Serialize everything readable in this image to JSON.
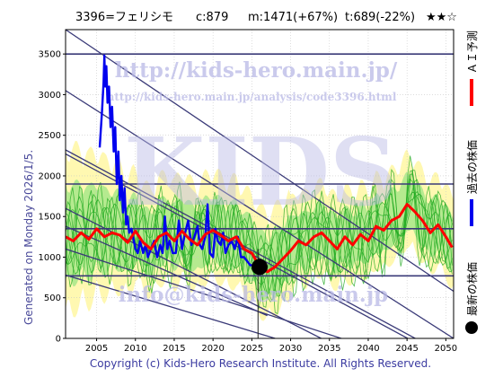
{
  "header": {
    "code_name": "3396=フェリシモ",
    "current": "c:879",
    "mid_target": "m:1471(+67%)",
    "low_target": "t:689(-22%)",
    "rating": "★★☆"
  },
  "side_text": "Generated on Monday 2026/1/5.",
  "footer": "Copyright (c) Kids-Hero Research Institute. All Rights Reserved.",
  "watermarks": {
    "url_large": "http://kids-hero.main.jp/",
    "url_small": "http://kids-hero.main.jp/analysis/code3396.html",
    "logo": "KIDS",
    "email": "info@kids-hero.main.jp"
  },
  "legend": {
    "ai_forecast": "ＡＩ予測",
    "past_price": "過去の株価",
    "latest_price": "最新の株価"
  },
  "colors": {
    "ai_forecast": "#ff0000",
    "past_price": "#0000ee",
    "latest_price": "#000000",
    "band_outer": "#fff7a8",
    "band_inner": "#a8e88a",
    "sim_lines": "#22aa22",
    "trend_lines": "#3a3a78",
    "background": "#ffffff"
  },
  "chart_data": {
    "type": "line",
    "xlim": [
      2001,
      2051
    ],
    "ylim": [
      0,
      3800
    ],
    "x_ticks": [
      2005,
      2010,
      2015,
      2020,
      2025,
      2030,
      2035,
      2040,
      2045,
      2050
    ],
    "y_ticks": [
      0,
      500,
      1000,
      1500,
      2000,
      2500,
      3000,
      3500
    ],
    "grid": true,
    "horizontal_levels": [
      3500,
      1900,
      1350,
      770
    ],
    "latest_point": {
      "x": 2026.0,
      "y": 879
    },
    "series": [
      {
        "key": "past_price",
        "x": [
          2005.4,
          2005.7,
          2005.9,
          2006.0,
          2006.1,
          2006.25,
          2006.4,
          2006.6,
          2006.8,
          2007.0,
          2007.2,
          2007.4,
          2007.6,
          2007.8,
          2008.0,
          2008.2,
          2008.4,
          2008.6,
          2008.8,
          2009.0,
          2009.2,
          2009.5,
          2009.8,
          2010.0,
          2010.3,
          2010.6,
          2011.0,
          2011.3,
          2011.6,
          2012.0,
          2012.4,
          2012.8,
          2013.2,
          2013.5,
          2013.8,
          2014.1,
          2014.4,
          2014.8,
          2015.2,
          2015.6,
          2016.0,
          2016.4,
          2016.8,
          2017.2,
          2017.6,
          2018.0,
          2018.3,
          2018.6,
          2019.0,
          2019.3,
          2019.6,
          2020.0,
          2020.3,
          2020.6,
          2021.0,
          2021.3,
          2021.6,
          2022.0,
          2022.4,
          2022.8,
          2023.2,
          2023.6,
          2024.0,
          2024.4,
          2024.8,
          2025.2
        ],
        "y": [
          2350,
          2800,
          3150,
          3480,
          3100,
          3350,
          2900,
          3100,
          2600,
          2850,
          2300,
          2600,
          1900,
          2300,
          1700,
          2000,
          1550,
          1850,
          1400,
          1500,
          1300,
          1350,
          1200,
          1100,
          1050,
          1200,
          1050,
          1150,
          1000,
          1100,
          1200,
          1000,
          1150,
          1050,
          1500,
          1100,
          1200,
          1050,
          1050,
          1450,
          1100,
          1300,
          1450,
          1150,
          1250,
          1380,
          1150,
          1100,
          1250,
          1650,
          1050,
          1000,
          1350,
          1200,
          1150,
          1300,
          1050,
          1150,
          1200,
          1100,
          1250,
          1000,
          1000,
          950,
          900,
          900
        ]
      },
      {
        "key": "ai_forecast",
        "x": [
          2001.0,
          2002.0,
          2003.0,
          2004.0,
          2005.0,
          2006.0,
          2007.0,
          2008.0,
          2009.0,
          2010.0,
          2011.0,
          2012.0,
          2013.0,
          2014.0,
          2015.0,
          2016.0,
          2017.0,
          2018.0,
          2019.0,
          2020.0,
          2021.0,
          2022.0,
          2023.0,
          2024.0,
          2025.0,
          2026.0,
          2027.0,
          2028.0,
          2029.0,
          2030.0,
          2031.0,
          2032.0,
          2033.0,
          2034.0,
          2035.0,
          2036.0,
          2037.0,
          2038.0,
          2039.0,
          2040.0,
          2041.0,
          2042.0,
          2043.0,
          2044.0,
          2045.0,
          2046.0,
          2047.0,
          2048.0,
          2049.0,
          2050.0,
          2050.8
        ],
        "y": [
          1250,
          1200,
          1300,
          1220,
          1350,
          1250,
          1300,
          1270,
          1180,
          1320,
          1180,
          1100,
          1250,
          1300,
          1200,
          1320,
          1220,
          1150,
          1280,
          1330,
          1270,
          1200,
          1250,
          1100,
          1050,
          880,
          820,
          880,
          980,
          1080,
          1200,
          1150,
          1250,
          1300,
          1200,
          1100,
          1250,
          1150,
          1280,
          1200,
          1380,
          1330,
          1450,
          1500,
          1650,
          1560,
          1450,
          1300,
          1400,
          1250,
          1120
        ]
      }
    ]
  }
}
